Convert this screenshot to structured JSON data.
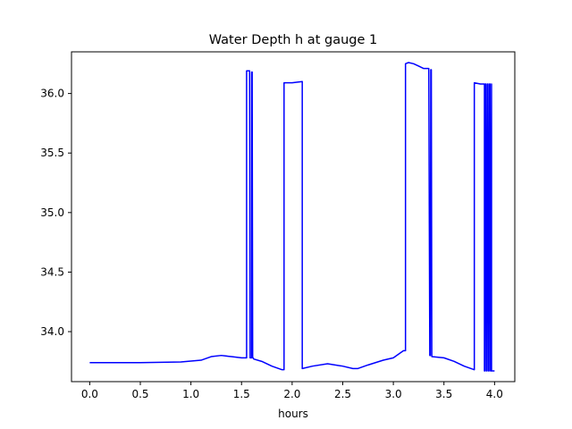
{
  "chart_data": {
    "type": "line",
    "title": "Water Depth h at gauge 1",
    "xlabel": "hours",
    "ylabel": "",
    "xlim": [
      -0.18,
      4.2
    ],
    "ylim": [
      33.58,
      36.35
    ],
    "xticks": [
      0.0,
      0.5,
      1.0,
      1.5,
      2.0,
      2.5,
      3.0,
      3.5,
      4.0
    ],
    "xtick_labels": [
      "0.0",
      "0.5",
      "1.0",
      "1.5",
      "2.0",
      "2.5",
      "3.0",
      "3.5",
      "4.0"
    ],
    "yticks": [
      34.0,
      34.5,
      35.0,
      35.5,
      36.0
    ],
    "ytick_labels": [
      "34.0",
      "34.5",
      "35.0",
      "35.5",
      "36.0"
    ],
    "grid": false,
    "series": [
      {
        "color": "#0000ff",
        "x": [
          0.0,
          0.5,
          0.9,
          1.1,
          1.2,
          1.3,
          1.4,
          1.5,
          1.55,
          1.55,
          1.58,
          1.585,
          1.6,
          1.6,
          1.605,
          1.61,
          1.615,
          1.62,
          1.7,
          1.8,
          1.9,
          1.92,
          1.92,
          2.0,
          2.1,
          2.1,
          2.2,
          2.35,
          2.5,
          2.6,
          2.65,
          2.75,
          2.9,
          3.0,
          3.1,
          3.12,
          3.12,
          3.15,
          3.2,
          3.25,
          3.3,
          3.35,
          3.36,
          3.365,
          3.37,
          3.375,
          3.38,
          3.38,
          3.5,
          3.6,
          3.7,
          3.8,
          3.8,
          3.86,
          3.9,
          3.9,
          3.905,
          3.91,
          3.915,
          3.92,
          3.925,
          3.93,
          3.935,
          3.94,
          3.945,
          3.95,
          3.955,
          3.96,
          3.965,
          3.97,
          3.97,
          4.0
        ],
        "y": [
          33.74,
          33.74,
          33.745,
          33.76,
          33.79,
          33.8,
          33.79,
          33.78,
          33.78,
          36.19,
          36.19,
          33.78,
          33.78,
          36.18,
          36.18,
          33.78,
          33.78,
          33.77,
          33.75,
          33.71,
          33.68,
          33.68,
          36.09,
          36.09,
          36.1,
          33.69,
          33.71,
          33.73,
          33.71,
          33.69,
          33.69,
          33.72,
          33.76,
          33.78,
          33.84,
          33.84,
          36.25,
          36.26,
          36.25,
          36.23,
          36.21,
          36.21,
          33.8,
          33.8,
          36.2,
          36.2,
          33.79,
          33.79,
          33.78,
          33.75,
          33.71,
          33.68,
          36.09,
          36.08,
          36.08,
          33.67,
          33.67,
          36.08,
          36.08,
          33.67,
          33.67,
          36.08,
          36.08,
          33.67,
          33.67,
          36.08,
          36.08,
          33.67,
          33.67,
          36.08,
          33.67,
          33.67
        ]
      }
    ]
  }
}
